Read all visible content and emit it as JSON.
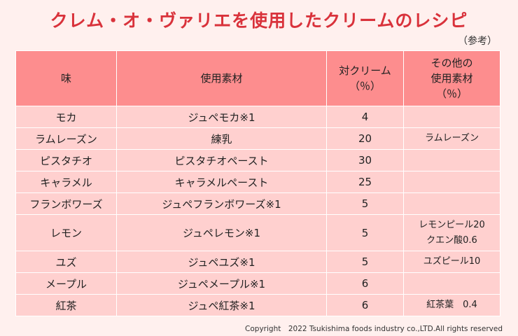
{
  "title": "クレム・オ・ヴァリエを使用したクリームのレシピ",
  "reference_note": "（参考）",
  "table": {
    "headers": {
      "flavor": "味",
      "material": "使用素材",
      "ratio_line1": "対クリーム",
      "ratio_line2": "（％）",
      "other_line1": "その他の",
      "other_line2": "使用素材",
      "other_line3": "（％）"
    },
    "rows": [
      {
        "flavor": "モカ",
        "material": "ジュペモカ※1",
        "ratio": "4",
        "extra": [
          "",
          ""
        ]
      },
      {
        "flavor": "ラムレーズン",
        "material": "練乳",
        "ratio": "20",
        "extra": [
          "ラムレーズン",
          ""
        ]
      },
      {
        "flavor": "ピスタチオ",
        "material": "ピスタチオペースト",
        "ratio": "30",
        "extra": [
          "",
          ""
        ]
      },
      {
        "flavor": "キャラメル",
        "material": "キャラメルペースト",
        "ratio": "25",
        "extra": [
          "",
          ""
        ]
      },
      {
        "flavor": "フランボワーズ",
        "material": "ジュペフランボワーズ※1",
        "ratio": "5",
        "extra": [
          "",
          ""
        ]
      },
      {
        "flavor": "レモン",
        "material": "ジュペレモン※1",
        "ratio": "5",
        "extra": [
          "レモンピール20",
          "クエン酸0.6"
        ]
      },
      {
        "flavor": "ユズ",
        "material": "ジュペユズ※1",
        "ratio": "5",
        "extra": [
          "ユズピール10",
          ""
        ]
      },
      {
        "flavor": "メープル",
        "material": "ジュペメープル※1",
        "ratio": "6",
        "extra": [
          "",
          ""
        ]
      },
      {
        "flavor": "紅茶",
        "material": "ジュペ紅茶※1",
        "ratio": "6",
        "extra": [
          "紅茶葉　0.4",
          ""
        ]
      }
    ]
  },
  "copyright": "Copyright　2022 Tsukishima foods industry co.,LTD.All rights reserved",
  "colors": {
    "title": "#d9323b",
    "header_bg": "#fd8d8e",
    "cell_bg": "#ffd0cf",
    "page_bg": "#fff0ee"
  }
}
